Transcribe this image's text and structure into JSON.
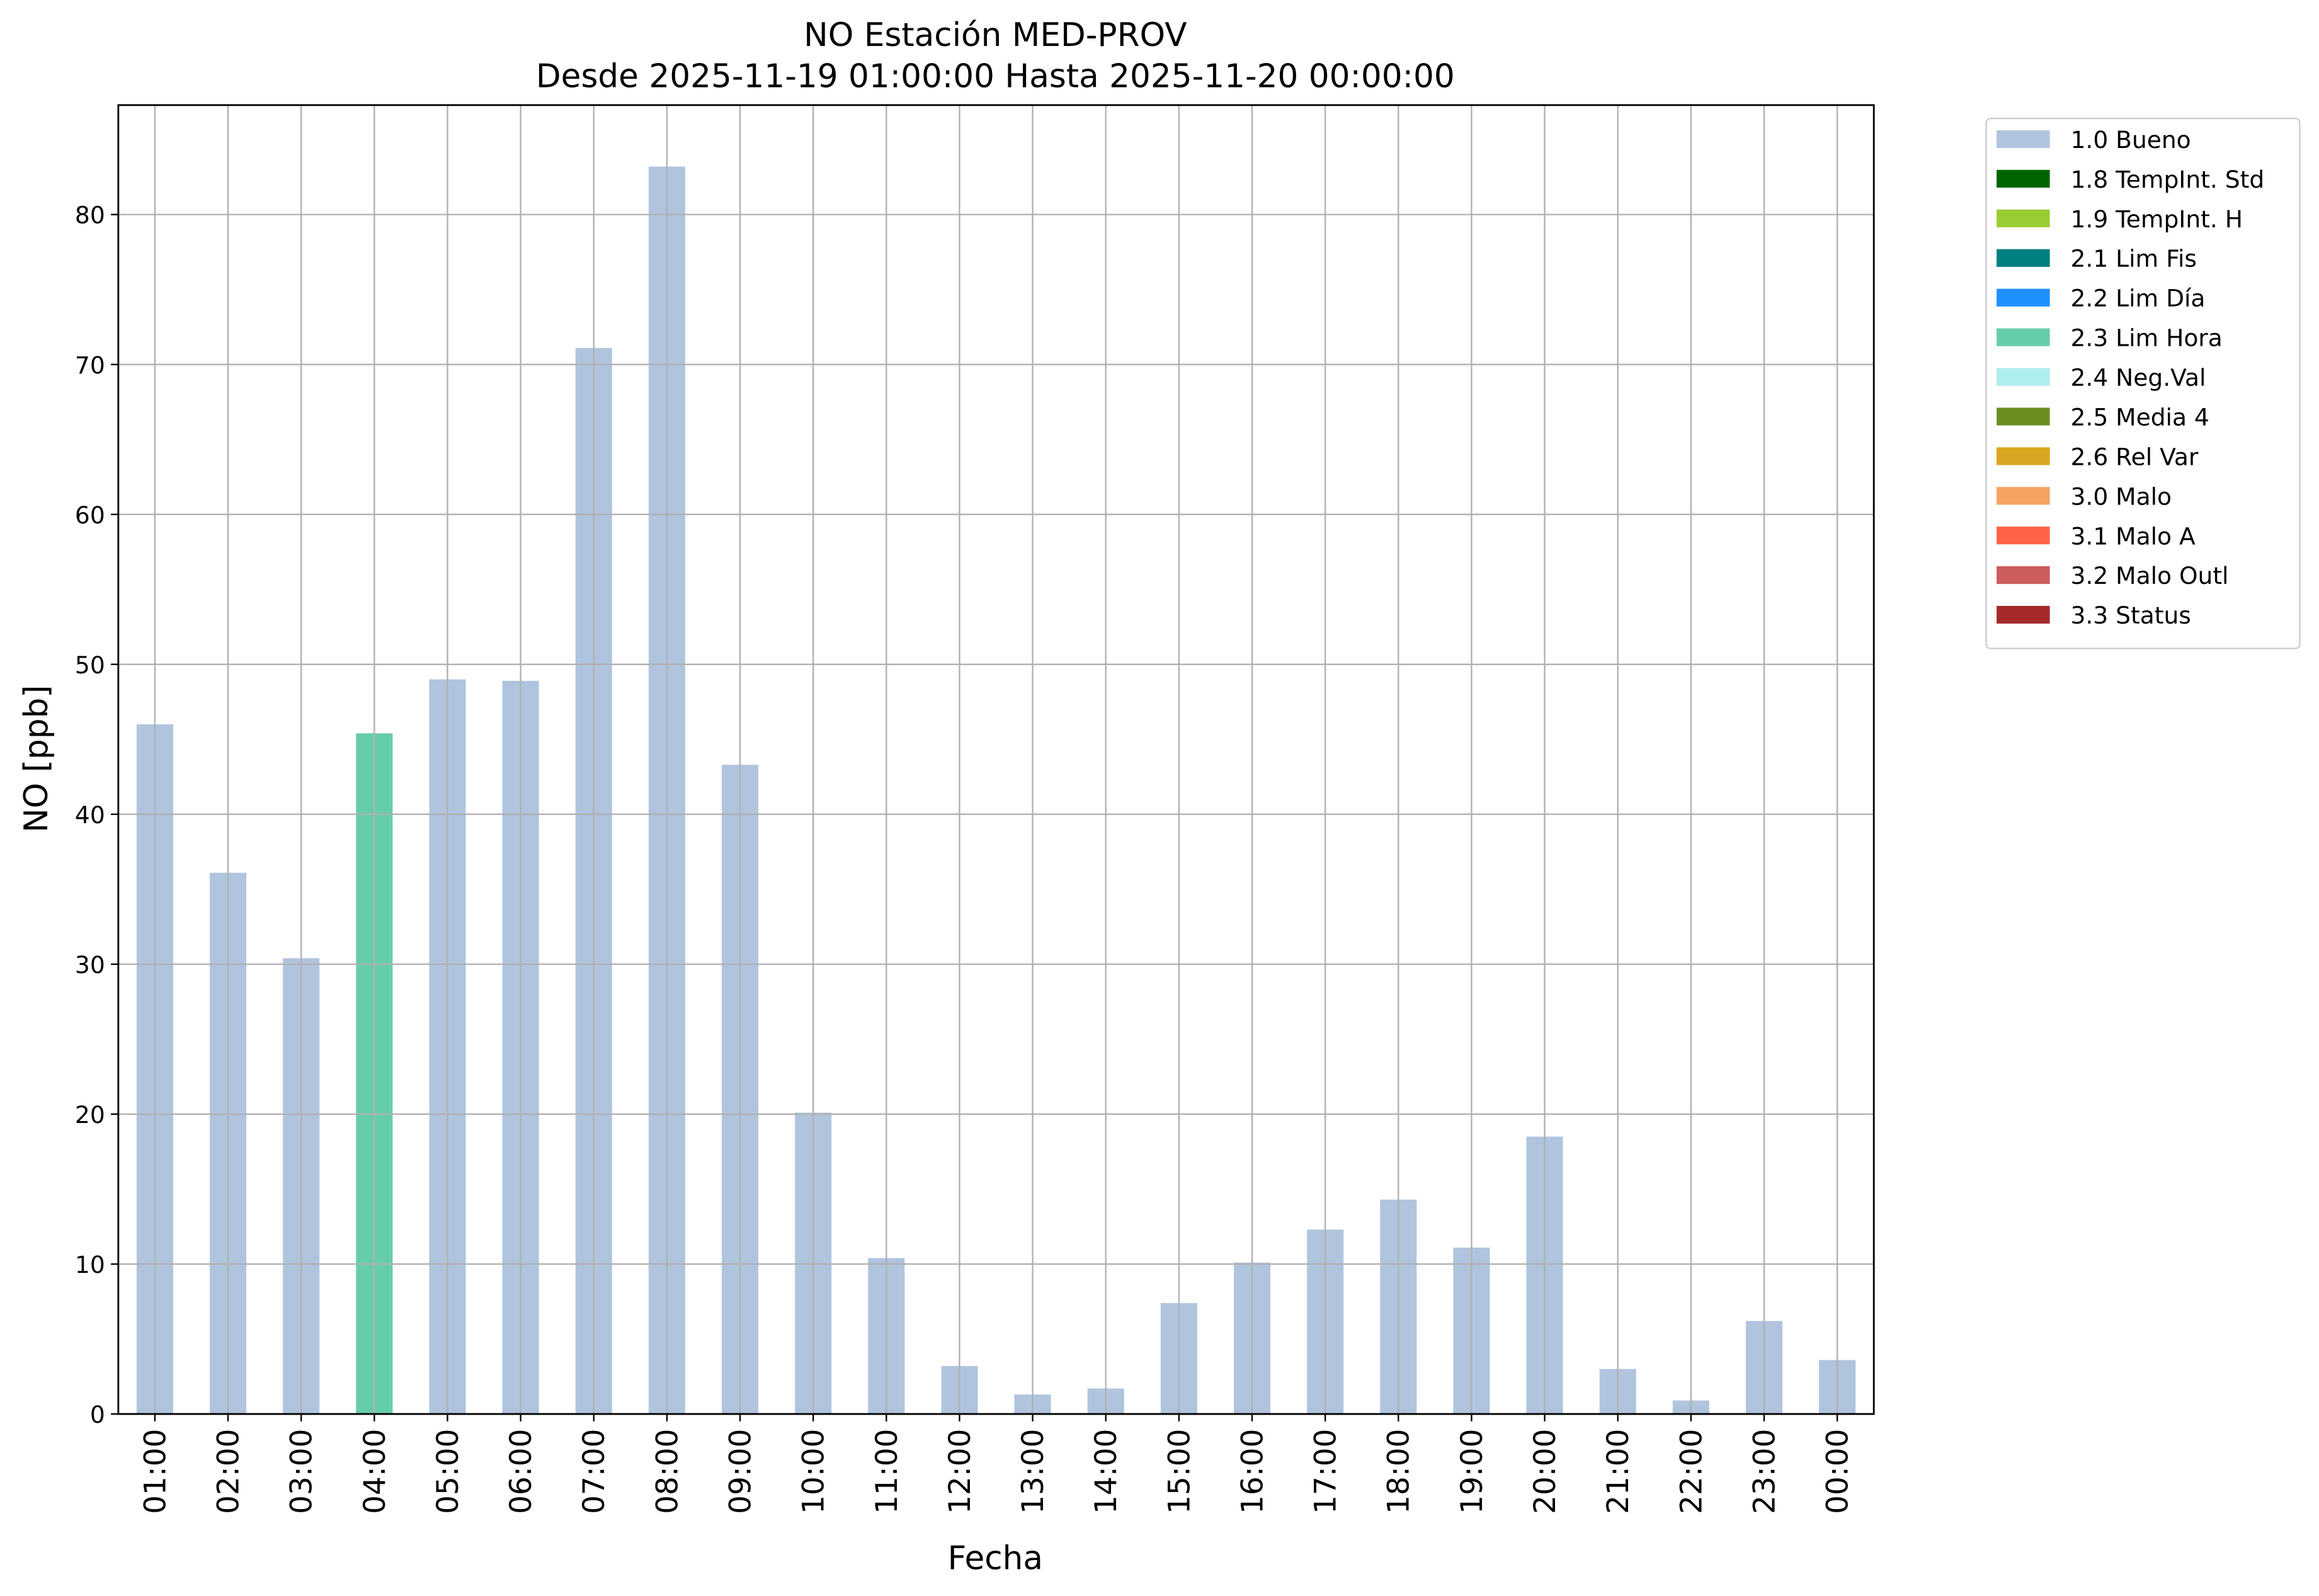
{
  "chart_data": {
    "type": "bar",
    "stacked": true,
    "title": "NO Estación MED-PROV",
    "subtitle": "Desde 2025-11-19 01:00:00 Hasta 2025-11-20 00:00:00",
    "x_label": "Fecha",
    "y_label": "NO [ppb]",
    "categories": [
      "01:00",
      "02:00",
      "03:00",
      "04:00",
      "05:00",
      "06:00",
      "07:00",
      "08:00",
      "09:00",
      "10:00",
      "11:00",
      "12:00",
      "13:00",
      "14:00",
      "15:00",
      "16:00",
      "17:00",
      "18:00",
      "19:00",
      "20:00",
      "21:00",
      "22:00",
      "23:00",
      "00:00"
    ],
    "series": [
      {
        "name": "1.0 Bueno",
        "color": "#b0c4de",
        "values": [
          46.0,
          36.1,
          30.4,
          null,
          49.0,
          48.9,
          71.1,
          83.2,
          43.3,
          20.1,
          10.4,
          3.2,
          1.3,
          1.7,
          7.4,
          10.1,
          12.3,
          14.3,
          11.1,
          18.5,
          3.0,
          0.9,
          6.2,
          3.6
        ]
      },
      {
        "name": "1.8 TempInt. Std",
        "color": "#006400",
        "values": [
          null,
          null,
          null,
          null,
          null,
          null,
          null,
          null,
          null,
          null,
          null,
          null,
          null,
          null,
          null,
          null,
          null,
          null,
          null,
          null,
          null,
          null,
          null,
          null
        ]
      },
      {
        "name": "1.9 TempInt. H",
        "color": "#9acd32",
        "values": [
          null,
          null,
          null,
          null,
          null,
          null,
          null,
          null,
          null,
          null,
          null,
          null,
          null,
          null,
          null,
          null,
          null,
          null,
          null,
          null,
          null,
          null,
          null,
          null
        ]
      },
      {
        "name": "2.1 Lim Fis",
        "color": "#008080",
        "values": [
          null,
          null,
          null,
          null,
          null,
          null,
          null,
          null,
          null,
          null,
          null,
          null,
          null,
          null,
          null,
          null,
          null,
          null,
          null,
          null,
          null,
          null,
          null,
          null
        ]
      },
      {
        "name": "2.2 Lim Día",
        "color": "#1e90ff",
        "values": [
          null,
          null,
          null,
          null,
          null,
          null,
          null,
          null,
          null,
          null,
          null,
          null,
          null,
          null,
          null,
          null,
          null,
          null,
          null,
          null,
          null,
          null,
          null,
          null
        ]
      },
      {
        "name": "2.3 Lim Hora",
        "color": "#66cdaa",
        "values": [
          null,
          null,
          null,
          45.4,
          null,
          null,
          null,
          null,
          null,
          null,
          null,
          null,
          null,
          null,
          null,
          null,
          null,
          null,
          null,
          null,
          null,
          null,
          null,
          null
        ]
      },
      {
        "name": "2.4 Neg.Val",
        "color": "#afeeee",
        "values": [
          null,
          null,
          null,
          null,
          null,
          null,
          null,
          null,
          null,
          null,
          null,
          null,
          null,
          null,
          null,
          null,
          null,
          null,
          null,
          null,
          null,
          null,
          null,
          null
        ]
      },
      {
        "name": "2.5 Media 4",
        "color": "#6b8e23",
        "values": [
          null,
          null,
          null,
          null,
          null,
          null,
          null,
          null,
          null,
          null,
          null,
          null,
          null,
          null,
          null,
          null,
          null,
          null,
          null,
          null,
          null,
          null,
          null,
          null
        ]
      },
      {
        "name": "2.6 Rel Var",
        "color": "#daa520",
        "values": [
          null,
          null,
          null,
          null,
          null,
          null,
          null,
          null,
          null,
          null,
          null,
          null,
          null,
          null,
          null,
          null,
          null,
          null,
          null,
          null,
          null,
          null,
          null,
          null
        ]
      },
      {
        "name": "3.0 Malo",
        "color": "#f4a460",
        "values": [
          null,
          null,
          null,
          null,
          null,
          null,
          null,
          null,
          null,
          null,
          null,
          null,
          null,
          null,
          null,
          null,
          null,
          null,
          null,
          null,
          null,
          null,
          null,
          null
        ]
      },
      {
        "name": "3.1 Malo A",
        "color": "#ff6347",
        "values": [
          null,
          null,
          null,
          null,
          null,
          null,
          null,
          null,
          null,
          null,
          null,
          null,
          null,
          null,
          null,
          null,
          null,
          null,
          null,
          null,
          null,
          null,
          null,
          null
        ]
      },
      {
        "name": "3.2 Malo Outl",
        "color": "#cd5c5c",
        "values": [
          null,
          null,
          null,
          null,
          null,
          null,
          null,
          null,
          null,
          null,
          null,
          null,
          null,
          null,
          null,
          null,
          null,
          null,
          null,
          null,
          null,
          null,
          null,
          null
        ]
      },
      {
        "name": "3.3 Status",
        "color": "#a52a2a",
        "values": [
          null,
          null,
          null,
          null,
          null,
          null,
          null,
          null,
          null,
          null,
          null,
          null,
          null,
          null,
          null,
          null,
          null,
          null,
          null,
          null,
          null,
          null,
          null,
          null
        ]
      }
    ],
    "ylim": [
      0,
      87.3
    ],
    "yticks": [
      0,
      10,
      20,
      30,
      40,
      50,
      60,
      70,
      80
    ],
    "grid": true,
    "legend": "outside-right"
  }
}
